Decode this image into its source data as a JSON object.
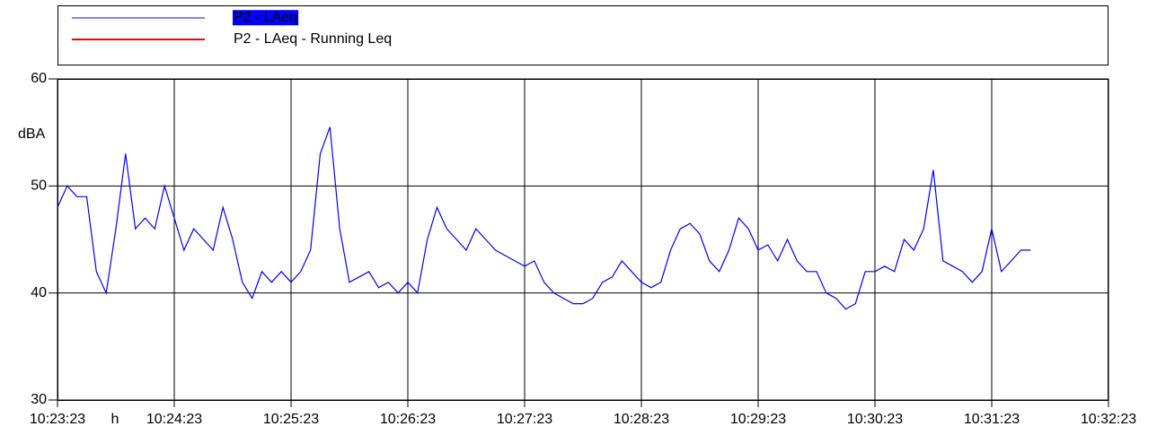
{
  "chart_data": {
    "type": "line",
    "y_label": "dBA",
    "x_label": "h",
    "xlim": [
      "10:23:23",
      "10:32:23"
    ],
    "xticks": [
      "10:23:23",
      "10:24:23",
      "10:25:23",
      "10:26:23",
      "10:27:23",
      "10:28:23",
      "10:29:23",
      "10:30:23",
      "10:31:23",
      "10:32:23"
    ],
    "ylim": [
      30,
      60
    ],
    "yticks": [
      30,
      40,
      50,
      60
    ],
    "grid": true,
    "series": [
      {
        "name": "P2 - LAeq",
        "color": "#0000ff",
        "highlighted": true,
        "x": [
          "10:23:23",
          "10:23:28",
          "10:23:33",
          "10:23:38",
          "10:23:43",
          "10:23:48",
          "10:23:53",
          "10:23:58",
          "10:24:03",
          "10:24:08",
          "10:24:13",
          "10:24:18",
          "10:24:23",
          "10:24:28",
          "10:24:33",
          "10:24:38",
          "10:24:43",
          "10:24:48",
          "10:24:53",
          "10:24:58",
          "10:25:03",
          "10:25:08",
          "10:25:13",
          "10:25:18",
          "10:25:23",
          "10:25:28",
          "10:25:33",
          "10:25:38",
          "10:25:43",
          "10:25:48",
          "10:25:53",
          "10:25:58",
          "10:26:03",
          "10:26:08",
          "10:26:13",
          "10:26:18",
          "10:26:23",
          "10:26:28",
          "10:26:33",
          "10:26:38",
          "10:26:43",
          "10:26:48",
          "10:26:53",
          "10:26:58",
          "10:27:03",
          "10:27:08",
          "10:27:13",
          "10:27:18",
          "10:27:23",
          "10:27:28",
          "10:27:33",
          "10:27:38",
          "10:27:43",
          "10:27:48",
          "10:27:53",
          "10:27:58",
          "10:28:03",
          "10:28:08",
          "10:28:13",
          "10:28:18",
          "10:28:23",
          "10:28:28",
          "10:28:33",
          "10:28:38",
          "10:28:43",
          "10:28:48",
          "10:28:53",
          "10:28:58",
          "10:29:03",
          "10:29:08",
          "10:29:13",
          "10:29:18",
          "10:29:23",
          "10:29:28",
          "10:29:33",
          "10:29:38",
          "10:29:43",
          "10:29:48",
          "10:29:53",
          "10:29:58",
          "10:30:03",
          "10:30:08",
          "10:30:13",
          "10:30:18",
          "10:30:23",
          "10:30:28",
          "10:30:33",
          "10:30:38",
          "10:30:43",
          "10:30:48",
          "10:30:53",
          "10:30:58",
          "10:31:03",
          "10:31:08",
          "10:31:13",
          "10:31:18",
          "10:31:23",
          "10:31:28",
          "10:31:33",
          "10:31:38",
          "10:31:43"
        ],
        "values": [
          48,
          50,
          49,
          49,
          42,
          40,
          46,
          53,
          46,
          47,
          46,
          50,
          47,
          44,
          46,
          45,
          44,
          48,
          45,
          41,
          39.5,
          42,
          41,
          42,
          41,
          42,
          44,
          53,
          55.5,
          46,
          41,
          41.5,
          42,
          40.5,
          41,
          40,
          41,
          40,
          45,
          48,
          46,
          45,
          44,
          46,
          45,
          44,
          43.5,
          43,
          42.5,
          43,
          41,
          40,
          39.5,
          39,
          39,
          39.5,
          41,
          41.5,
          43,
          42,
          41,
          40.5,
          41,
          44,
          46,
          46.5,
          45.5,
          43,
          42,
          44,
          47,
          46,
          44,
          44.5,
          43,
          45,
          43,
          42,
          42,
          40,
          39.5,
          38.5,
          39,
          42,
          42,
          42.5,
          42,
          45,
          44,
          46,
          51.5,
          43,
          42.5,
          42,
          41,
          42,
          46,
          42,
          43,
          44,
          44
        ]
      },
      {
        "name": "P2 - LAeq - Running Leq",
        "color": "#ff0000",
        "highlighted": false,
        "x": [],
        "values": []
      }
    ]
  }
}
